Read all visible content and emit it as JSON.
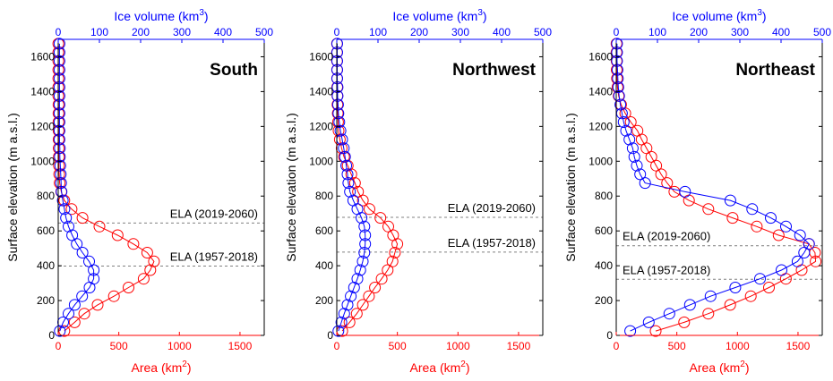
{
  "figure": {
    "top_axis_label": "Ice volume (km",
    "bottom_axis_label": "Area (km",
    "superscript_volume": "3",
    "superscript_area": "2",
    "ylabel": "Surface elevation (m a.s.l.)",
    "ytick_labels": [
      "0",
      "200",
      "400",
      "600",
      "800",
      "1000",
      "1200",
      "1400",
      "1600"
    ],
    "volume_tick_labels": [
      "0",
      "100",
      "200",
      "300",
      "400",
      "500"
    ],
    "area_tick_labels": [
      "0",
      "500",
      "1000",
      "1500"
    ],
    "colors": {
      "area": "#ff0000",
      "volume": "#0000ff",
      "axis": "#000000",
      "ela_line": "#808080"
    }
  },
  "chart_data": [
    {
      "type": "line",
      "title": "South",
      "ylim": [
        0,
        1700
      ],
      "area_xlim": [
        0,
        1700
      ],
      "volume_xlim": [
        0,
        500
      ],
      "ela": [
        {
          "label": "ELA (2019-2060)",
          "elevation": 645
        },
        {
          "label": "ELA (1957-2018)",
          "elevation": 398
        }
      ],
      "series": [
        {
          "axis": "bottom",
          "elevation": [
            25,
            75,
            125,
            175,
            225,
            275,
            325,
            375,
            425,
            475,
            525,
            575,
            625,
            675,
            725,
            775,
            825,
            875,
            925,
            975,
            1025,
            1075,
            1125,
            1175,
            1225,
            1275,
            1325,
            1375,
            1425,
            1475,
            1525,
            1575,
            1625,
            1675
          ],
          "values": [
            50,
            135,
            215,
            325,
            460,
            580,
            705,
            760,
            790,
            735,
            620,
            490,
            340,
            200,
            110,
            50,
            25,
            12,
            8,
            6,
            5,
            4,
            3,
            3,
            2,
            2,
            2,
            1,
            1,
            1,
            1,
            1,
            1,
            1
          ]
        },
        {
          "axis": "top",
          "elevation": [
            25,
            75,
            125,
            175,
            225,
            275,
            325,
            375,
            425,
            475,
            525,
            575,
            625,
            675,
            725,
            775,
            825,
            875,
            925,
            975,
            1025,
            1075,
            1125,
            1175,
            1225,
            1275,
            1325,
            1375,
            1425,
            1475,
            1525,
            1575,
            1625,
            1675
          ],
          "values": [
            4,
            12,
            25,
            40,
            58,
            76,
            86,
            86,
            75,
            59,
            45,
            34,
            25,
            19,
            15,
            11,
            8,
            7,
            6,
            5,
            4,
            4,
            3,
            3,
            3,
            3,
            3,
            3,
            3,
            3,
            3,
            3,
            3,
            3
          ]
        }
      ]
    },
    {
      "type": "line",
      "title": "Northwest",
      "ylim": [
        0,
        1700
      ],
      "area_xlim": [
        0,
        1700
      ],
      "volume_xlim": [
        0,
        500
      ],
      "ela": [
        {
          "label": "ELA (2019-2060)",
          "elevation": 678
        },
        {
          "label": "ELA (1957-2018)",
          "elevation": 478
        }
      ],
      "series": [
        {
          "axis": "bottom",
          "elevation": [
            25,
            75,
            125,
            175,
            225,
            275,
            325,
            375,
            425,
            475,
            525,
            575,
            625,
            675,
            725,
            775,
            825,
            875,
            925,
            975,
            1025,
            1075,
            1125,
            1175,
            1225,
            1275,
            1325,
            1375,
            1425,
            1475,
            1525,
            1575,
            1625,
            1675
          ],
          "values": [
            45,
            105,
            165,
            215,
            265,
            315,
            370,
            420,
            460,
            480,
            500,
            465,
            425,
            360,
            270,
            215,
            175,
            150,
            120,
            90,
            60,
            40,
            25,
            15,
            10,
            8,
            6,
            5,
            4,
            3,
            3,
            2,
            2,
            2
          ]
        },
        {
          "axis": "top",
          "elevation": [
            25,
            75,
            125,
            175,
            225,
            275,
            325,
            375,
            425,
            475,
            525,
            575,
            625,
            675,
            725,
            775,
            825,
            875,
            925,
            975,
            1025,
            1075,
            1125,
            1175,
            1225,
            1275,
            1325,
            1375,
            1425,
            1475,
            1525,
            1575,
            1625,
            1675
          ],
          "values": [
            4,
            11,
            18,
            26,
            34,
            42,
            50,
            57,
            63,
            67,
            69,
            69,
            67,
            60,
            50,
            40,
            32,
            28,
            26,
            23,
            20,
            17,
            13,
            9,
            6,
            4,
            3,
            2,
            2,
            1,
            1,
            1,
            1,
            1
          ]
        }
      ]
    },
    {
      "type": "line",
      "title": "Northeast",
      "ylim": [
        0,
        1700
      ],
      "area_xlim": [
        0,
        1700
      ],
      "volume_xlim": [
        0,
        500
      ],
      "ela": [
        {
          "label": "ELA (2019-2060)",
          "elevation": 515
        },
        {
          "label": "ELA (1957-2018)",
          "elevation": 322
        }
      ],
      "series": [
        {
          "axis": "bottom",
          "elevation": [
            25,
            75,
            125,
            175,
            225,
            275,
            325,
            375,
            425,
            475,
            525,
            575,
            625,
            675,
            725,
            775,
            825,
            875,
            925,
            975,
            1025,
            1075,
            1125,
            1175,
            1225,
            1275,
            1325,
            1375,
            1425,
            1475,
            1525,
            1575,
            1625,
            1675
          ],
          "values": [
            325,
            560,
            760,
            940,
            1110,
            1260,
            1400,
            1530,
            1645,
            1640,
            1590,
            1340,
            1160,
            960,
            760,
            600,
            480,
            420,
            370,
            330,
            290,
            250,
            210,
            175,
            120,
            75,
            40,
            20,
            10,
            6,
            4,
            3,
            2,
            2
          ]
        },
        {
          "axis": "top",
          "elevation": [
            25,
            75,
            125,
            175,
            225,
            275,
            325,
            375,
            425,
            475,
            525,
            575,
            625,
            675,
            725,
            775,
            825,
            875,
            925,
            975,
            1025,
            1075,
            1125,
            1175,
            1225,
            1275,
            1325,
            1375,
            1425,
            1475,
            1525,
            1575,
            1625,
            1675
          ],
          "values": [
            34,
            79,
            129,
            179,
            229,
            289,
            349,
            401,
            440,
            456,
            468,
            446,
            412,
            375,
            330,
            277,
            167,
            70,
            58,
            50,
            44,
            40,
            32,
            24,
            18,
            14,
            10,
            7,
            5,
            4,
            3,
            2,
            2,
            2
          ]
        }
      ]
    }
  ]
}
